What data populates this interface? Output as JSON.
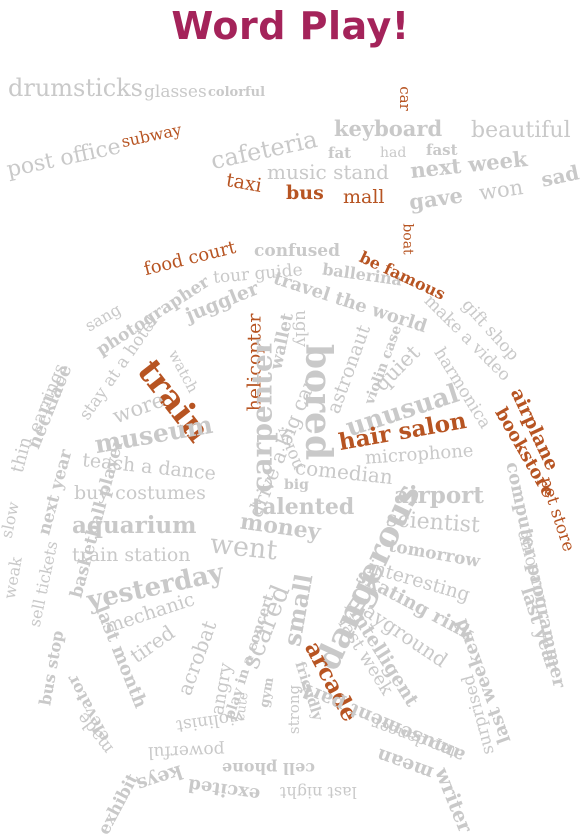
{
  "title": "Word Play!",
  "colors": {
    "title": "#a4235a",
    "orange": "#b75422",
    "gray": "#c9c9c9",
    "background": "#ffffff"
  },
  "words": {
    "drumsticks": "drumsticks",
    "glasses": "glasses",
    "colorful": "colorful",
    "car": "car",
    "subway": "subway",
    "post_office": "post office",
    "cafeteria": "cafeteria",
    "keyboard": "keyboard",
    "beautiful": "beautiful",
    "fat": "fat",
    "had": "had",
    "fast": "fast",
    "music_stand": "music stand",
    "next_week": "next week",
    "sad": "sad",
    "taxi": "taxi",
    "bus": "bus",
    "mall": "mall",
    "gave": "gave",
    "won": "won",
    "boat": "boat",
    "food_court": "food court",
    "confused": "confused",
    "tour_guide": "tour guide",
    "ballerina": "ballerina",
    "be_famous": "be famous",
    "photographer": "photographer",
    "sang": "sang",
    "juggler": "juggler",
    "travel_the_world": "travel the world",
    "make_a_video": "make a video",
    "gift_shop": "gift shop",
    "helicopter": "helicopter",
    "wallet": "wallet",
    "ugly": "ugly",
    "astronaut": "astronaut",
    "violin_case": "violin case",
    "quiet": "quiet",
    "harmonica": "harmonica",
    "airplane": "airplane",
    "bookstore": "bookstore",
    "pet_store": "pet store",
    "necklace": "necklace",
    "stay_at_a_hotel": "stay at a hotel",
    "watch": "watch",
    "train": "train",
    "carpenter": "carpenter",
    "bored": "bored",
    "unusual": "unusual",
    "hair_salon": "hair salon",
    "earrings": "earrings",
    "wore": "wore",
    "museum": "museum",
    "drive_a_big_car": "drive a big car",
    "noisy": "noisy",
    "microphone": "microphone",
    "comedian": "comedian",
    "thin": "thin",
    "next_year": "next year",
    "teach_a_dance": "teach a dance",
    "basketball_player": "basketball player",
    "buy_costumes": "buy costumes",
    "big": "big",
    "talented": "talented",
    "airport": "airport",
    "computer_programmer": "computer programmer",
    "dinosaur": "dinosaur",
    "slow": "slow",
    "aquarium": "aquarium",
    "money": "money",
    "scientist": "scientist",
    "dangerous": "dangerous",
    "went": "went",
    "sell_tickets": "sell tickets",
    "train_station": "train station",
    "tomorrow": "tomorrow",
    "weak": "weak",
    "yesterday": "yesterday",
    "interesting": "interesting",
    "last_year": "last year",
    "skating_rink": "skating rink",
    "mechanic": "mechanic",
    "small": "small",
    "scared": "scared",
    "playground": "playground",
    "bus_stop": "bus stop",
    "last_month": "last month",
    "tired": "tired",
    "acrobat": "acrobat",
    "play_in_a_concert": "play in a concert",
    "intelligent": "intelligent",
    "last_weekend": "last weekend",
    "elevator": "elevator",
    "angry": "angry",
    "cute": "cute",
    "gym": "gym",
    "arcade": "arcade",
    "last_week": "last week",
    "friendly": "friendly",
    "made": "made",
    "violinist": "violinist",
    "strong": "strong",
    "amusement_park": "amusement park",
    "surprised": "surprised",
    "powerful": "powerful",
    "tap_dancer": "tap dancer",
    "keys": "keys",
    "cell_phone": "cell phone",
    "mean": "mean",
    "exhibit": "exhibit",
    "excited": "excited",
    "last_night": "last night",
    "writer": "writer"
  }
}
